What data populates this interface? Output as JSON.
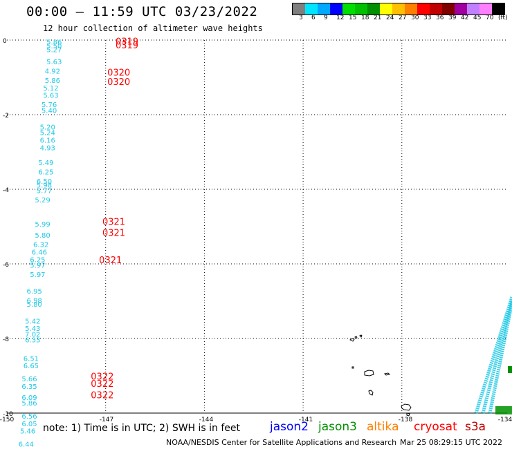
{
  "title": "00:00 – 11:59 UTC 03/23/2022",
  "subtitle": "12 hour collection of altimeter wave heights",
  "colorbar": {
    "colors": [
      "#7f7f7f",
      "#00e5ff",
      "#00a8ff",
      "#0000ff",
      "#00e000",
      "#00c000",
      "#009000",
      "#ffff00",
      "#ffc000",
      "#ff8000",
      "#ff0000",
      "#c00000",
      "#800000",
      "#a000a0",
      "#c080ff",
      "#ff80ff",
      "#000000"
    ],
    "labels": [
      "3",
      "6",
      "9",
      "12",
      "15",
      "18",
      "21",
      "24",
      "27",
      "30",
      "33",
      "36",
      "39",
      "42",
      "45",
      "70",
      "(ft)"
    ]
  },
  "axes": {
    "lat_ticks": [
      "0",
      "-2",
      "-4",
      "-6",
      "-8",
      "-10"
    ],
    "lon_ticks": [
      "-150",
      "-147",
      "-144",
      "-141",
      "-138",
      "-134"
    ]
  },
  "cyan_track": [
    {
      "lat": -0.12,
      "lon": -148.8,
      "v": "5.86"
    },
    {
      "lat": -0.22,
      "lon": -148.8,
      "v": "5.50"
    },
    {
      "lat": -0.32,
      "lon": -148.8,
      "v": "5.27"
    },
    {
      "lat": -0.65,
      "lon": -148.8,
      "v": "5.63"
    },
    {
      "lat": -0.9,
      "lon": -148.85,
      "v": "4.92"
    },
    {
      "lat": -1.15,
      "lon": -148.85,
      "v": "5.86"
    },
    {
      "lat": -1.35,
      "lon": -148.9,
      "v": "5.12"
    },
    {
      "lat": -1.55,
      "lon": -148.9,
      "v": "5.63"
    },
    {
      "lat": -1.8,
      "lon": -148.95,
      "v": "5.76"
    },
    {
      "lat": -1.95,
      "lon": -148.95,
      "v": "5.40"
    },
    {
      "lat": -2.4,
      "lon": -149.0,
      "v": "5.20"
    },
    {
      "lat": -2.55,
      "lon": -149.0,
      "v": "5.24"
    },
    {
      "lat": -2.75,
      "lon": -149.0,
      "v": "6.16"
    },
    {
      "lat": -2.95,
      "lon": -149.0,
      "v": "4.93"
    },
    {
      "lat": -3.35,
      "lon": -149.05,
      "v": "5.49"
    },
    {
      "lat": -3.6,
      "lon": -149.05,
      "v": "6.25"
    },
    {
      "lat": -3.85,
      "lon": -149.1,
      "v": "6.50"
    },
    {
      "lat": -3.95,
      "lon": -149.1,
      "v": "5.98"
    },
    {
      "lat": -4.1,
      "lon": -149.1,
      "v": "5.77"
    },
    {
      "lat": -4.35,
      "lon": -149.15,
      "v": "5.29"
    },
    {
      "lat": -5.0,
      "lon": -149.15,
      "v": "5.99"
    },
    {
      "lat": -5.3,
      "lon": -149.15,
      "v": "5.80"
    },
    {
      "lat": -5.55,
      "lon": -149.2,
      "v": "6.32"
    },
    {
      "lat": -5.75,
      "lon": -149.25,
      "v": "6.46"
    },
    {
      "lat": -5.95,
      "lon": -149.3,
      "v": "6.25"
    },
    {
      "lat": -6.1,
      "lon": -149.3,
      "v": "5.97"
    },
    {
      "lat": -6.35,
      "lon": -149.3,
      "v": "5.97"
    },
    {
      "lat": -6.8,
      "lon": -149.4,
      "v": "6.95"
    },
    {
      "lat": -7.05,
      "lon": -149.4,
      "v": "6.98"
    },
    {
      "lat": -7.15,
      "lon": -149.4,
      "v": "5.80"
    },
    {
      "lat": -7.6,
      "lon": -149.45,
      "v": "5.42"
    },
    {
      "lat": -7.8,
      "lon": -149.45,
      "v": "5.43"
    },
    {
      "lat": -7.95,
      "lon": -149.45,
      "v": "7.02"
    },
    {
      "lat": -8.1,
      "lon": -149.45,
      "v": "6.33"
    },
    {
      "lat": -8.6,
      "lon": -149.5,
      "v": "6.51"
    },
    {
      "lat": -8.8,
      "lon": -149.5,
      "v": "6.65"
    },
    {
      "lat": -9.15,
      "lon": -149.55,
      "v": "5.66"
    },
    {
      "lat": -9.35,
      "lon": -149.55,
      "v": "6.35"
    },
    {
      "lat": -9.65,
      "lon": -149.55,
      "v": "6.09"
    },
    {
      "lat": -9.8,
      "lon": -149.55,
      "v": "5.86"
    },
    {
      "lat": -10.15,
      "lon": -149.55,
      "v": "6.56"
    },
    {
      "lat": -10.35,
      "lon": -149.55,
      "v": "6.05"
    },
    {
      "lat": -10.55,
      "lon": -149.6,
      "v": "5.46"
    },
    {
      "lat": -10.9,
      "lon": -149.65,
      "v": "6.44"
    }
  ],
  "red_labels": [
    {
      "lat": -0.12,
      "lon": -146.7,
      "t": "0319"
    },
    {
      "lat": -0.22,
      "lon": -146.7,
      "t": "0319"
    },
    {
      "lat": -0.95,
      "lon": -146.95,
      "t": "0320"
    },
    {
      "lat": -1.2,
      "lon": -146.95,
      "t": "0320"
    },
    {
      "lat": -4.95,
      "lon": -147.1,
      "t": "0321"
    },
    {
      "lat": -5.25,
      "lon": -147.1,
      "t": "0321"
    },
    {
      "lat": -5.98,
      "lon": -147.2,
      "t": "0321"
    },
    {
      "lat": -9.1,
      "lon": -147.45,
      "t": "0322"
    },
    {
      "lat": -9.3,
      "lon": -147.45,
      "t": "0322"
    },
    {
      "lat": -9.6,
      "lon": -147.45,
      "t": "0322"
    }
  ],
  "note": "note: 1) Time is in UTC; 2) SWH is in feet",
  "satellites": [
    {
      "name": "jason2",
      "color": "#0000ff"
    },
    {
      "name": "jason3",
      "color": "#009000"
    },
    {
      "name": "altika",
      "color": "#ff8000"
    },
    {
      "name": "cryosat",
      "color": "#ff0000"
    },
    {
      "name": "s3a",
      "color": "#c00000"
    }
  ],
  "credit": "NOAA/NESDIS Center for Satellite Applications and Research",
  "timestamp": "Mar 25 08:29:15 UTC 2022"
}
